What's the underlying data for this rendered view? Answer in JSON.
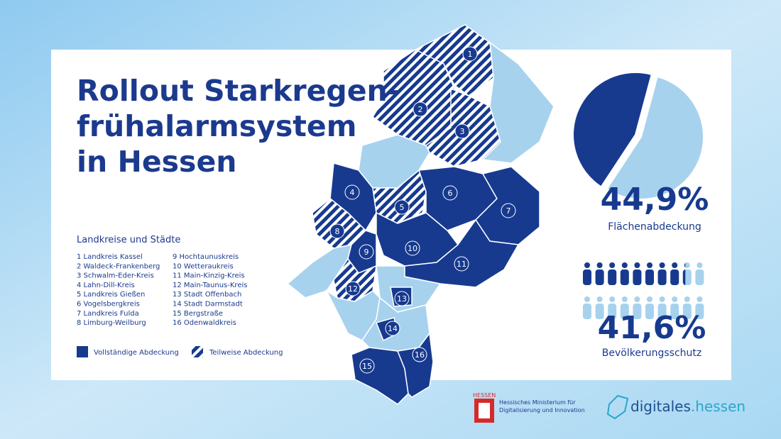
{
  "header": {
    "title_lines": [
      "Rollout Starkregen-",
      "frühalarmsystem",
      "in Hessen"
    ]
  },
  "legend": {
    "title": "Landkreise und Städte",
    "items": [
      "1 Landkreis Kassel",
      "2 Waldeck-Frankenberg",
      "3 Schwalm-Eder-Kreis",
      "4 Lahn-Dill-Kreis",
      "5 Landkreis Gießen",
      "6 Vogelsbergkreis",
      "7 Landkreis Fulda",
      "8 Limburg-Weilburg",
      "9 Hochtaunuskreis",
      "10 Wetteraukreis",
      "11 Main-Kinzig-Kreis",
      "12 Main-Taunus-Kreis",
      "13 Stadt Offenbach",
      "14 Stadt Darmstadt",
      "15 Bergstraße",
      "16 Odenwaldkreis"
    ],
    "full": "Vollständige Abdeckung",
    "partial": "Teilweise Abdeckung"
  },
  "map": {
    "regions": [
      {
        "number": "1",
        "partial": true
      },
      {
        "number": "2",
        "partial": true
      },
      {
        "number": "3",
        "partial": true
      },
      {
        "number": "4",
        "partial": false
      },
      {
        "number": "5",
        "partial": true
      },
      {
        "number": "6",
        "partial": false
      },
      {
        "number": "7",
        "partial": false
      },
      {
        "number": "8",
        "partial": true
      },
      {
        "number": "9",
        "partial": false
      },
      {
        "number": "10",
        "partial": false
      },
      {
        "number": "11",
        "partial": false
      },
      {
        "number": "12",
        "partial": true
      },
      {
        "number": "13",
        "partial": false
      },
      {
        "number": "14",
        "partial": false
      },
      {
        "number": "15",
        "partial": false
      },
      {
        "number": "16",
        "partial": false
      }
    ]
  },
  "stats": {
    "area": {
      "value": 44.9,
      "label": "44,9%",
      "caption": "Flächenabdeckung"
    },
    "population": {
      "value": 41.6,
      "label": "41,6%",
      "caption": "Bevölkerungsschutz"
    }
  },
  "footer": {
    "state": "HESSEN",
    "ministry_lines": [
      "Hessisches Ministerium für",
      "Digitalisierung und Innovation"
    ],
    "brand": "digitales",
    "brand_suffix": ".hessen"
  }
}
